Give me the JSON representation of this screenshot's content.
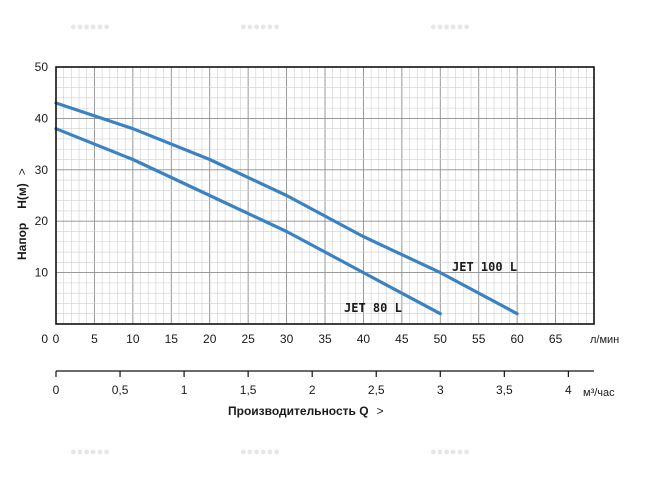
{
  "chart_data": {
    "type": "line",
    "x_unit": "л/мин",
    "x2_unit": "м³/час",
    "xlabel": "Производительность Q",
    "ylabel": "Напор",
    "ylabel_unit": "H(м)",
    "arrow": ">",
    "xlim": [
      0,
      70
    ],
    "ylim": [
      0,
      50
    ],
    "x_ticks": [
      0,
      5,
      10,
      15,
      20,
      25,
      30,
      35,
      40,
      45,
      50,
      55,
      60,
      65
    ],
    "y_ticks": [
      10,
      20,
      30,
      40,
      50
    ],
    "x2_ticks": [
      "0",
      "0,5",
      "1",
      "1,5",
      "2",
      "2,5",
      "3",
      "3,5",
      "4"
    ],
    "x2_tick_values": [
      0,
      0.5,
      1,
      1.5,
      2,
      2.5,
      3,
      3.5,
      4
    ],
    "grid": true,
    "series": [
      {
        "name": "JET 100 L",
        "color": "#3a82c4",
        "x": [
          0,
          10,
          20,
          30,
          40,
          50,
          60
        ],
        "y": [
          43,
          38,
          32,
          25,
          17,
          10,
          2
        ]
      },
      {
        "name": "JET 80 L",
        "color": "#3a82c4",
        "x": [
          0,
          10,
          20,
          30,
          40,
          50
        ],
        "y": [
          38,
          32,
          25,
          18,
          10,
          2
        ]
      }
    ]
  }
}
